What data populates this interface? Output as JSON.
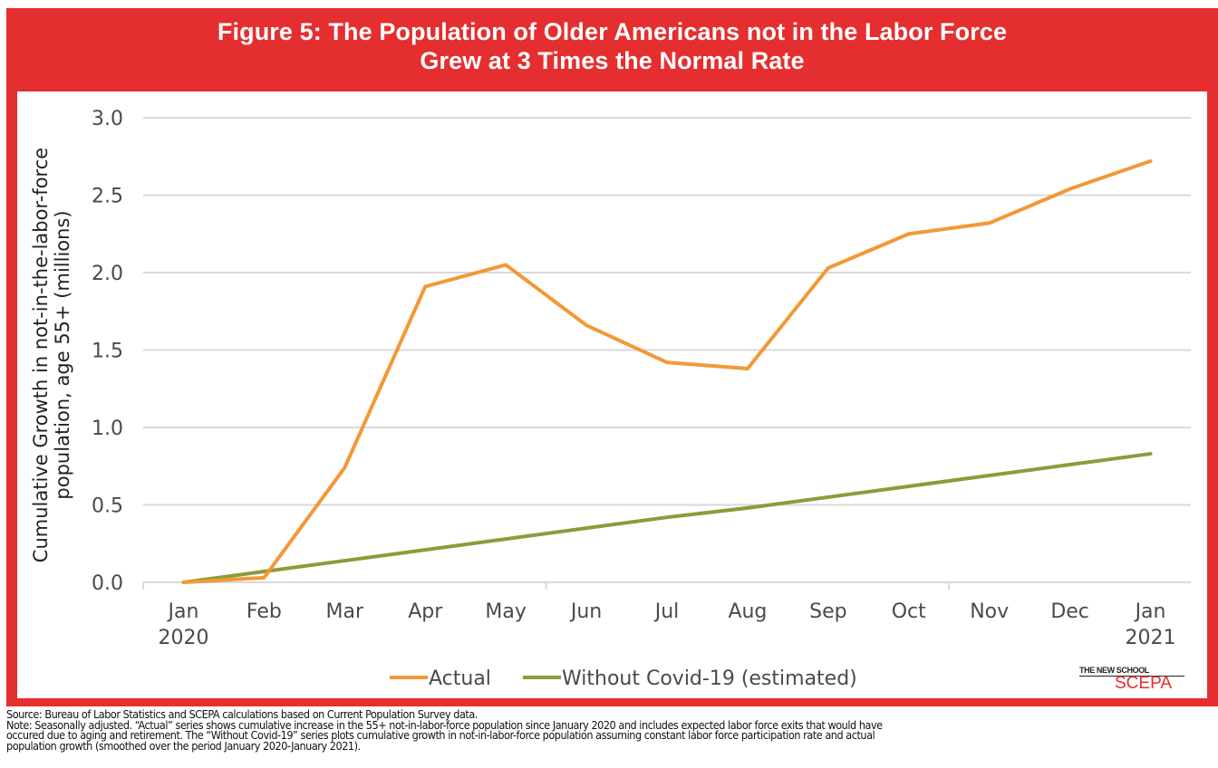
{
  "figure": {
    "title_line1": "Figure 5: The Population of Older Americans not in the Labor Force",
    "title_line2": "Grew at 3 Times the Normal Rate",
    "frame_color": "#e52e2f"
  },
  "logo": {
    "top": "THE NEW SCHOOL",
    "bottom": "SCEPA"
  },
  "notes": {
    "source": "Source: Bureau of Labor Statistics and SCEPA calculations based on Current Population Survey data.",
    "note_line1": "Note: Seasonally adjusted. “Actual” series shows cumulative increase in the 55+ not-in-labor-force population since January 2020 and includes expected labor force exits that would have",
    "note_line2": "occured due to aging and retirement. The “Without Covid-19” series plots cumulative growth in not-in-labor-force population assuming constant labor force participation rate and actual",
    "note_line3": "population growth (smoothed over the period January 2020-January 2021)."
  },
  "chart_data": {
    "type": "line",
    "title": "Figure 5: The Population of Older Americans not in the Labor Force Grew at 3 Times the Normal Rate",
    "xlabel": "",
    "ylabel_line1": "Cumulative Growth in not-in-the-labor-force",
    "ylabel_line2": "population, age 55+ (millions)",
    "categories": [
      "Jan",
      "Feb",
      "Mar",
      "Apr",
      "May",
      "Jun",
      "Jul",
      "Aug",
      "Sep",
      "Oct",
      "Nov",
      "Dec",
      "Jan"
    ],
    "category_sublabels": [
      "2020",
      "",
      "",
      "",
      "",
      "",
      "",
      "",
      "",
      "",
      "",
      "",
      "2021"
    ],
    "ylim": [
      0,
      3.0
    ],
    "yticks": [
      "0.0",
      "0.5",
      "1.0",
      "1.5",
      "2.0",
      "2.5",
      "3.0"
    ],
    "ytick_values": [
      0,
      0.5,
      1.0,
      1.5,
      2.0,
      2.5,
      3.0
    ],
    "grid": true,
    "legend_position": "bottom-center",
    "series": [
      {
        "name": "Actual",
        "color": "#f39837",
        "values": [
          0.0,
          0.03,
          0.74,
          1.91,
          2.05,
          1.66,
          1.42,
          1.38,
          2.03,
          2.25,
          2.32,
          2.54,
          2.72
        ]
      },
      {
        "name": "Without Covid-19 (estimated)",
        "color": "#8f9a3a",
        "values": [
          0.0,
          0.07,
          0.14,
          0.21,
          0.28,
          0.35,
          0.42,
          0.48,
          0.55,
          0.62,
          0.69,
          0.76,
          0.83
        ]
      }
    ]
  }
}
